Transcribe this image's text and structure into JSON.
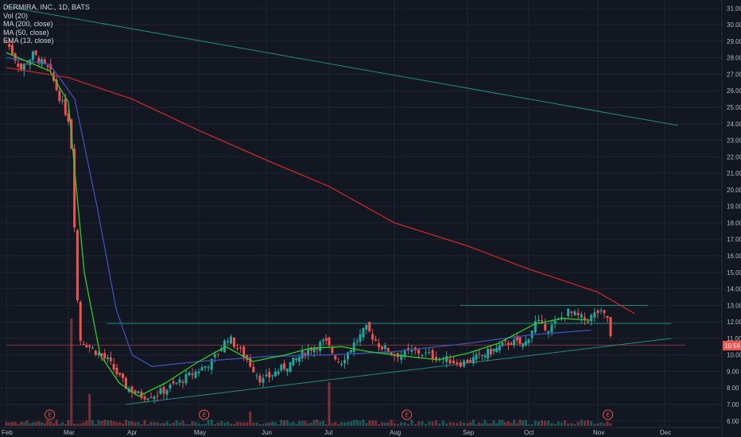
{
  "legend": {
    "symbol": "DERMIRA, INC., 1D, BATS",
    "vol": "Vol (20)",
    "ma200": "MA (200, close)",
    "ma50": "MA (50, close)",
    "ema13": "EMA (13, close)"
  },
  "colors": {
    "background": "#131722",
    "up": "#26a69a",
    "down": "#ef5350",
    "ma200": "#c62828",
    "ma50": "#3f51b5",
    "ema13": "#2ecc2e",
    "trend": "#1f8f7a",
    "grid": "#1f2433"
  },
  "chart_data": {
    "type": "candlestick",
    "title": "DERMIRA, INC., 1D, BATS",
    "ylim": [
      5.7,
      31.4
    ],
    "y_ticks": [
      "31.00",
      "30.00",
      "29.00",
      "28.00",
      "27.00",
      "26.00",
      "25.00",
      "24.00",
      "23.00",
      "22.00",
      "21.00",
      "20.00",
      "19.00",
      "18.00",
      "17.00",
      "16.00",
      "15.00",
      "14.00",
      "13.00",
      "12.00",
      "11.00",
      "10.00",
      "9.00",
      "8.00",
      "7.00",
      "6.00"
    ],
    "x_ticks": [
      "Feb",
      "Mar",
      "Apr",
      "May",
      "Jun",
      "Jul",
      "Aug",
      "Sep",
      "Oct",
      "Nov",
      "Dec"
    ],
    "last_price": "10.56",
    "earnings_markers": [
      "E",
      "E",
      "E",
      "E"
    ],
    "candles_anchor": [
      {
        "d": "Feb 01",
        "c": 29.0
      },
      {
        "d": "Feb 08",
        "c": 27.3
      },
      {
        "d": "Feb 14",
        "c": 28.2
      },
      {
        "d": "Feb 22",
        "c": 27.2
      },
      {
        "d": "Feb 28",
        "c": 25.2
      },
      {
        "d": "Mar 02",
        "c": 24.0
      },
      {
        "d": "Mar 06",
        "c": 11.0
      },
      {
        "d": "Mar 12",
        "c": 10.4
      },
      {
        "d": "Mar 20",
        "c": 9.6
      },
      {
        "d": "Mar 28",
        "c": 8.1
      },
      {
        "d": "Apr 05",
        "c": 7.5
      },
      {
        "d": "Apr 12",
        "c": 7.6
      },
      {
        "d": "Apr 20",
        "c": 8.2
      },
      {
        "d": "Apr 30",
        "c": 9.0
      },
      {
        "d": "May 07",
        "c": 9.6
      },
      {
        "d": "May 14",
        "c": 11.1
      },
      {
        "d": "May 22",
        "c": 9.8
      },
      {
        "d": "May 29",
        "c": 8.4
      },
      {
        "d": "Jun 06",
        "c": 9.0
      },
      {
        "d": "Jun 14",
        "c": 9.6
      },
      {
        "d": "Jun 22",
        "c": 10.4
      },
      {
        "d": "Jun 29",
        "c": 10.8
      },
      {
        "d": "Jul 06",
        "c": 9.5
      },
      {
        "d": "Jul 12",
        "c": 10.6
      },
      {
        "d": "Jul 18",
        "c": 11.6
      },
      {
        "d": "Jul 24",
        "c": 10.6
      },
      {
        "d": "Aug 01",
        "c": 10.0
      },
      {
        "d": "Aug 10",
        "c": 10.2
      },
      {
        "d": "Aug 20",
        "c": 9.8
      },
      {
        "d": "Aug 28",
        "c": 9.5
      },
      {
        "d": "Sep 05",
        "c": 9.8
      },
      {
        "d": "Sep 14",
        "c": 10.3
      },
      {
        "d": "Sep 22",
        "c": 10.8
      },
      {
        "d": "Sep 29",
        "c": 10.6
      },
      {
        "d": "Oct 04",
        "c": 12.0
      },
      {
        "d": "Oct 10",
        "c": 11.6
      },
      {
        "d": "Oct 18",
        "c": 12.6
      },
      {
        "d": "Oct 26",
        "c": 12.1
      },
      {
        "d": "Nov 01",
        "c": 12.6
      },
      {
        "d": "Nov 06",
        "c": 12.2
      },
      {
        "d": "Nov 07",
        "c": 10.56
      }
    ],
    "ma200": [
      [
        0,
        27.4
      ],
      [
        1,
        26.8
      ],
      [
        2,
        25.5
      ],
      [
        3,
        23.6
      ],
      [
        4,
        21.8
      ],
      [
        5,
        20.2
      ],
      [
        6,
        18.0
      ],
      [
        7,
        16.6
      ],
      [
        8,
        15.2
      ],
      [
        9,
        13.8
      ],
      [
        9.55,
        12.5
      ]
    ],
    "ma50": [
      [
        0,
        28.0
      ],
      [
        0.7,
        27.6
      ],
      [
        1.1,
        25.5
      ],
      [
        1.45,
        19.0
      ],
      [
        1.75,
        12.8
      ],
      [
        2.0,
        10.0
      ],
      [
        2.3,
        9.3
      ],
      [
        3.0,
        9.6
      ],
      [
        4.0,
        9.9
      ],
      [
        5.0,
        10.0
      ],
      [
        6.0,
        10.2
      ],
      [
        7.0,
        10.7
      ],
      [
        8.0,
        11.2
      ],
      [
        8.9,
        11.5
      ]
    ],
    "ema13": [
      [
        0,
        28.3
      ],
      [
        0.7,
        27.2
      ],
      [
        1.0,
        25.3
      ],
      [
        1.25,
        15.0
      ],
      [
        1.5,
        10.0
      ],
      [
        1.8,
        8.3
      ],
      [
        2.1,
        7.5
      ],
      [
        2.5,
        8.3
      ],
      [
        3.0,
        9.6
      ],
      [
        3.4,
        10.5
      ],
      [
        3.8,
        9.6
      ],
      [
        4.3,
        10.0
      ],
      [
        4.7,
        10.4
      ],
      [
        5.2,
        10.5
      ],
      [
        5.6,
        10.2
      ],
      [
        6.0,
        10.0
      ],
      [
        6.6,
        9.7
      ],
      [
        7.0,
        10.1
      ],
      [
        7.5,
        10.7
      ],
      [
        8.1,
        11.9
      ],
      [
        8.5,
        12.2
      ],
      [
        8.9,
        12.1
      ]
    ],
    "trend_lines": [
      {
        "from": [
          0,
          31.1
        ],
        "to": [
          10.2,
          23.9
        ]
      },
      {
        "from": [
          1.9,
          7.0
        ],
        "to": [
          10.1,
          11.0
        ]
      },
      {
        "from": [
          1.6,
          11.9
        ],
        "to": [
          10.1,
          11.9
        ]
      },
      {
        "from": [
          6.9,
          13.0
        ],
        "to": [
          9.75,
          13.0
        ]
      },
      {
        "from": [
          0,
          10.6
        ],
        "to": [
          10.3,
          10.6
        ]
      }
    ]
  }
}
